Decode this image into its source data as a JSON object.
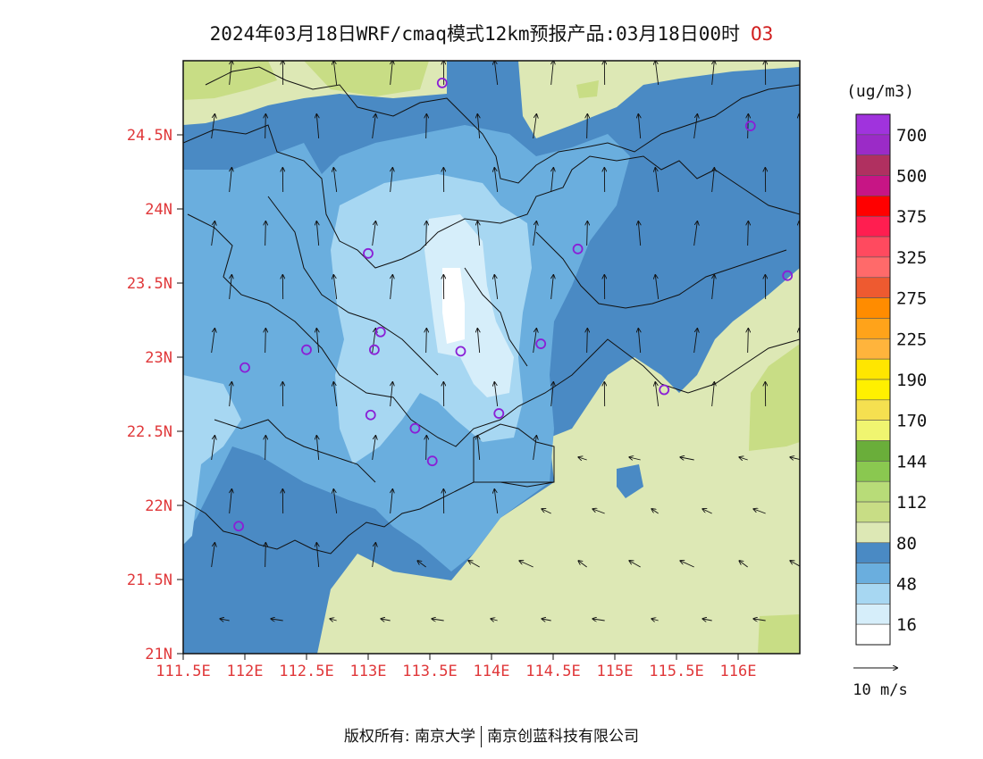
{
  "title": "2024年03月18日WRF/cmaq模式12km预报产品:03月18日00时",
  "species": "O3",
  "lat_labels": [
    "24.5N",
    "24N",
    "23.5N",
    "23N",
    "22.5N",
    "22N",
    "21.5N",
    "21N"
  ],
  "lat_values": [
    24.5,
    24,
    23.5,
    23,
    22.5,
    22,
    21.5,
    21
  ],
  "lon_labels": [
    "111.5E",
    "112E",
    "112.5E",
    "113E",
    "113.5E",
    "114E",
    "114.5E",
    "115E",
    "115.5E",
    "116E"
  ],
  "lon_values": [
    111.5,
    112,
    112.5,
    113,
    113.5,
    114,
    114.5,
    115,
    115.5,
    116
  ],
  "map_extent": {
    "lon": [
      111.5,
      116.5
    ],
    "lat": [
      21,
      25
    ]
  },
  "legend": {
    "unit": "(ug/m3)",
    "labels": [
      "700",
      "500",
      "375",
      "325",
      "275",
      "225",
      "190",
      "170",
      "144",
      "112",
      "80",
      "48",
      "16"
    ],
    "colors": [
      "#a033dd",
      "#9b2bc7",
      "#b03060",
      "#c71585",
      "#ff0000",
      "#ff1e50",
      "#ff4a5f",
      "#ff6a6a",
      "#ee5a30",
      "#ff8c00",
      "#ffa31a",
      "#ffb43c",
      "#ffe600",
      "#fff000",
      "#f5e050",
      "#f0f570",
      "#6aae3a",
      "#8ac850",
      "#b8dc78",
      "#c8dd85",
      "#dde8b5",
      "#4a8ac4",
      "#6aaede",
      "#a7d7f2",
      "#d6eefa",
      "#ffffff"
    ]
  },
  "wind_reference": {
    "label": "10 m/s"
  },
  "stations": [
    {
      "lon": 113.6,
      "lat": 24.85
    },
    {
      "lon": 116.1,
      "lat": 24.56
    },
    {
      "lon": 113.0,
      "lat": 23.7
    },
    {
      "lon": 114.7,
      "lat": 23.73
    },
    {
      "lon": 116.4,
      "lat": 23.55
    },
    {
      "lon": 113.1,
      "lat": 23.17
    },
    {
      "lon": 112.5,
      "lat": 23.05
    },
    {
      "lon": 113.05,
      "lat": 23.05
    },
    {
      "lon": 113.75,
      "lat": 23.04
    },
    {
      "lon": 114.4,
      "lat": 23.09
    },
    {
      "lon": 112.0,
      "lat": 22.93
    },
    {
      "lon": 115.4,
      "lat": 22.78
    },
    {
      "lon": 113.02,
      "lat": 22.61
    },
    {
      "lon": 114.06,
      "lat": 22.62
    },
    {
      "lon": 113.38,
      "lat": 22.52
    },
    {
      "lon": 113.52,
      "lat": 22.3
    },
    {
      "lon": 111.95,
      "lat": 21.86
    }
  ],
  "footer": {
    "left": "版权所有: 南京大学",
    "right": "南京创蓝科技有限公司"
  }
}
